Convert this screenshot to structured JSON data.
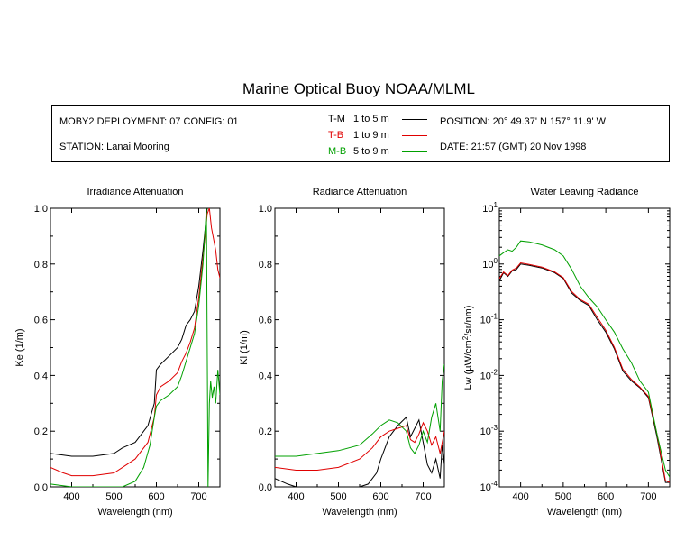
{
  "title": "Marine Optical Buoy NOAA/MLML",
  "info": {
    "deployment": "MOBY2 DEPLOYMENT: 07 CONFIG: 01",
    "station": "STATION: Lanai Mooring",
    "position": "POSITION: 20° 49.37' N   157° 11.9' W",
    "date": "DATE: 21:57 (GMT) 20 Nov 1998"
  },
  "legend": [
    {
      "code": "T-M",
      "range": "1 to 5  m",
      "color": "#000000"
    },
    {
      "code": "T-B",
      "range": "1 to 9  m",
      "color": "#e00000"
    },
    {
      "code": "M-B",
      "range": "5 to 9  m",
      "color": "#00a000"
    }
  ],
  "chart_data": [
    {
      "type": "line",
      "title": "Irradiance Attenuation",
      "xlabel": "Wavelength (nm)",
      "ylabel": "Ke  (1/m)",
      "xlim": [
        350,
        750
      ],
      "ylim": [
        0,
        1
      ],
      "xticks": [
        400,
        500,
        600,
        700
      ],
      "yticks": [
        0.0,
        0.2,
        0.4,
        0.6,
        0.8,
        1.0
      ],
      "ytick_labels": [
        "0.0",
        "0.2",
        "0.4",
        "0.6",
        "0.8",
        "1.0"
      ],
      "grid": false,
      "series": [
        {
          "name": "T-M",
          "color": "#000000",
          "x": [
            350,
            400,
            450,
            500,
            520,
            550,
            580,
            595,
            600,
            610,
            630,
            650,
            660,
            670,
            680,
            690,
            700,
            710,
            720
          ],
          "y": [
            0.12,
            0.11,
            0.11,
            0.12,
            0.14,
            0.16,
            0.22,
            0.3,
            0.42,
            0.44,
            0.47,
            0.5,
            0.53,
            0.58,
            0.6,
            0.63,
            0.72,
            0.85,
            1.0
          ]
        },
        {
          "name": "T-B",
          "color": "#e00000",
          "x": [
            350,
            380,
            400,
            450,
            500,
            520,
            550,
            580,
            595,
            600,
            610,
            630,
            650,
            660,
            670,
            680,
            690,
            700,
            710,
            720,
            725,
            730,
            740,
            745,
            750
          ],
          "y": [
            0.07,
            0.05,
            0.04,
            0.04,
            0.05,
            0.07,
            0.1,
            0.16,
            0.25,
            0.33,
            0.36,
            0.38,
            0.41,
            0.45,
            0.48,
            0.52,
            0.57,
            0.68,
            0.82,
            0.98,
            1.0,
            0.93,
            0.85,
            0.78,
            0.75
          ]
        },
        {
          "name": "M-B",
          "color": "#00a000",
          "x": [
            350,
            400,
            450,
            500,
            520,
            550,
            570,
            585,
            595,
            600,
            610,
            630,
            650,
            660,
            670,
            680,
            690,
            700,
            710,
            718,
            722,
            725,
            728,
            732,
            736,
            740,
            745,
            750
          ],
          "y": [
            0.01,
            0.0,
            0.0,
            0.0,
            0.0,
            0.02,
            0.07,
            0.15,
            0.25,
            0.29,
            0.31,
            0.33,
            0.36,
            0.4,
            0.45,
            0.5,
            0.55,
            0.65,
            0.8,
            1.0,
            0.0,
            0.3,
            0.38,
            0.32,
            0.36,
            0.3,
            0.42,
            0.33
          ]
        }
      ]
    },
    {
      "type": "line",
      "title": "Radiance Attenuation",
      "xlabel": "Wavelength (nm)",
      "ylabel": "Kl  (1/m)",
      "xlim": [
        350,
        750
      ],
      "ylim": [
        0,
        1
      ],
      "xticks": [
        400,
        500,
        600,
        700
      ],
      "yticks": [
        0.0,
        0.2,
        0.4,
        0.6,
        0.8,
        1.0
      ],
      "ytick_labels": [
        "0.0",
        "0.2",
        "0.4",
        "0.6",
        "0.8",
        "1.0"
      ],
      "grid": false,
      "series": [
        {
          "name": "T-M",
          "color": "#000000",
          "x": [
            350,
            380,
            400,
            450,
            500,
            550,
            570,
            590,
            600,
            620,
            640,
            660,
            670,
            680,
            690,
            700,
            710,
            720,
            730,
            740,
            745,
            750
          ],
          "y": [
            0.03,
            0.01,
            0.0,
            0.0,
            0.0,
            0.0,
            0.01,
            0.05,
            0.1,
            0.18,
            0.22,
            0.25,
            0.18,
            0.21,
            0.24,
            0.16,
            0.08,
            0.05,
            0.1,
            0.03,
            0.15,
            0.08
          ]
        },
        {
          "name": "T-B",
          "color": "#e00000",
          "x": [
            350,
            400,
            450,
            500,
            550,
            580,
            600,
            610,
            620,
            640,
            660,
            670,
            680,
            690,
            700,
            710,
            720,
            730,
            740,
            750
          ],
          "y": [
            0.07,
            0.06,
            0.06,
            0.07,
            0.1,
            0.14,
            0.18,
            0.19,
            0.2,
            0.21,
            0.22,
            0.17,
            0.16,
            0.19,
            0.23,
            0.2,
            0.15,
            0.18,
            0.12,
            0.2
          ]
        },
        {
          "name": "M-B",
          "color": "#00a000",
          "x": [
            350,
            400,
            450,
            500,
            550,
            580,
            600,
            620,
            640,
            660,
            670,
            680,
            690,
            700,
            710,
            720,
            730,
            740,
            745,
            750
          ],
          "y": [
            0.11,
            0.11,
            0.12,
            0.13,
            0.15,
            0.19,
            0.22,
            0.24,
            0.23,
            0.2,
            0.14,
            0.12,
            0.15,
            0.2,
            0.16,
            0.25,
            0.3,
            0.2,
            0.38,
            0.44
          ]
        }
      ]
    },
    {
      "type": "line",
      "title": "Water Leaving Radiance",
      "xlabel": "Wavelength (nm)",
      "ylabel": "Lw  (µW/cm²/sr/nm)",
      "scale": "log",
      "xlim": [
        350,
        750
      ],
      "ylim": [
        0.0001,
        10
      ],
      "xticks": [
        400,
        500,
        600,
        700
      ],
      "yticks": [
        0.0001,
        0.001,
        0.01,
        0.1,
        1,
        10
      ],
      "ytick_labels": [
        "10⁻⁴",
        "10⁻³",
        "10⁻²",
        "10⁻¹",
        "10⁰",
        "10¹"
      ],
      "grid": false,
      "series": [
        {
          "name": "T-M",
          "color": "#000000",
          "x": [
            350,
            360,
            370,
            380,
            390,
            400,
            420,
            450,
            480,
            500,
            520,
            540,
            560,
            580,
            600,
            620,
            640,
            660,
            680,
            700,
            720,
            740,
            750
          ],
          "y": [
            0.5,
            0.7,
            0.6,
            0.75,
            0.8,
            1.0,
            0.95,
            0.85,
            0.7,
            0.55,
            0.3,
            0.22,
            0.18,
            0.1,
            0.06,
            0.03,
            0.012,
            0.008,
            0.006,
            0.004,
            0.0008,
            0.00012,
            0.00012
          ]
        },
        {
          "name": "T-B",
          "color": "#e00000",
          "x": [
            350,
            360,
            370,
            380,
            390,
            400,
            420,
            450,
            480,
            500,
            520,
            540,
            560,
            580,
            600,
            620,
            640,
            660,
            680,
            700,
            720,
            740,
            750
          ],
          "y": [
            0.55,
            0.72,
            0.62,
            0.78,
            0.85,
            1.05,
            0.98,
            0.88,
            0.72,
            0.57,
            0.32,
            0.23,
            0.19,
            0.11,
            0.065,
            0.032,
            0.013,
            0.0085,
            0.0062,
            0.0042,
            0.0009,
            0.00013,
            0.00012
          ]
        },
        {
          "name": "M-B",
          "color": "#00a000",
          "x": [
            350,
            360,
            370,
            380,
            390,
            400,
            420,
            450,
            480,
            500,
            520,
            540,
            560,
            580,
            600,
            620,
            640,
            660,
            680,
            700,
            720,
            740,
            750
          ],
          "y": [
            1.4,
            1.6,
            1.8,
            1.7,
            2.0,
            2.6,
            2.5,
            2.2,
            1.8,
            1.4,
            0.8,
            0.4,
            0.25,
            0.17,
            0.1,
            0.06,
            0.03,
            0.017,
            0.008,
            0.005,
            0.0009,
            0.0002,
            0.00015
          ]
        }
      ]
    }
  ]
}
